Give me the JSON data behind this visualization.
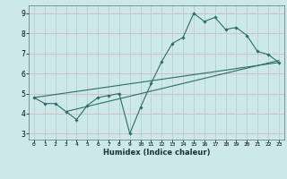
{
  "xlabel": "Humidex (Indice chaleur)",
  "bg_color": "#cce8e8",
  "grid_color_h": "#d4b8b8",
  "grid_color_v": "#b8d0d0",
  "line_color": "#2a6e68",
  "xlim": [
    -0.5,
    23.5
  ],
  "ylim": [
    2.7,
    9.4
  ],
  "xticks": [
    0,
    1,
    2,
    3,
    4,
    5,
    6,
    7,
    8,
    9,
    10,
    11,
    12,
    13,
    14,
    15,
    16,
    17,
    18,
    19,
    20,
    21,
    22,
    23
  ],
  "yticks": [
    3,
    4,
    5,
    6,
    7,
    8,
    9
  ],
  "data_points": [
    [
      0,
      4.8
    ],
    [
      1,
      4.5
    ],
    [
      2,
      4.5
    ],
    [
      3,
      4.1
    ],
    [
      4,
      3.7
    ],
    [
      5,
      4.4
    ],
    [
      6,
      4.8
    ],
    [
      7,
      4.9
    ],
    [
      8,
      5.0
    ],
    [
      9,
      3.0
    ],
    [
      10,
      4.3
    ],
    [
      11,
      5.5
    ],
    [
      12,
      6.6
    ],
    [
      13,
      7.5
    ],
    [
      14,
      7.8
    ],
    [
      15,
      9.0
    ],
    [
      16,
      8.6
    ],
    [
      17,
      8.8
    ],
    [
      18,
      8.2
    ],
    [
      19,
      8.3
    ],
    [
      20,
      7.9
    ],
    [
      21,
      7.1
    ],
    [
      22,
      6.95
    ],
    [
      23,
      6.55
    ]
  ],
  "trend_line_1": [
    [
      0,
      4.8
    ],
    [
      23,
      6.55
    ]
  ],
  "trend_line_2": [
    [
      3,
      4.1
    ],
    [
      23,
      6.65
    ]
  ]
}
